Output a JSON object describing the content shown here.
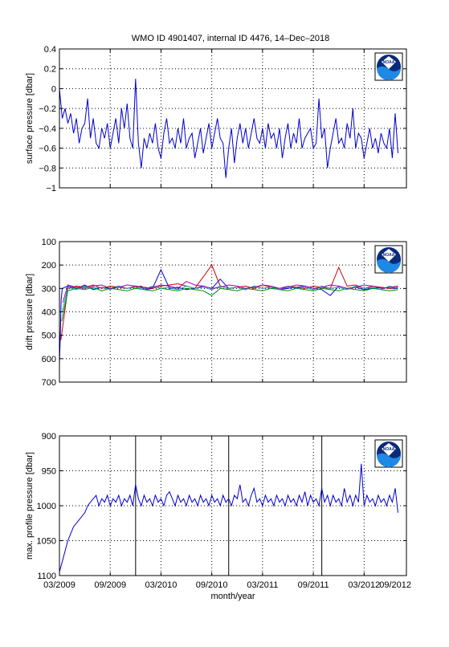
{
  "title": "WMO ID 4901407, internal ID 4476, 14–Dec–2018",
  "xlabel": "month/year",
  "logo_text": "NOAA",
  "colors": {
    "line": "#0000cc",
    "axes": "#000000",
    "grid": "#000000",
    "background": "#ffffff"
  },
  "chart_data": [
    {
      "type": "line",
      "ylabel": "surface pressure [dbar]",
      "ylim": [
        -1,
        0.4
      ],
      "yticks": [
        "0.4",
        "0.2",
        "0",
        "−0.2",
        "−0.4",
        "−0.6",
        "−0.8",
        "−1"
      ],
      "ytick_values": [
        0.4,
        0.2,
        0,
        -0.2,
        -0.4,
        -0.6,
        -0.8,
        -1
      ],
      "reversed": false,
      "grid": true,
      "series": [
        {
          "x": [
            0,
            1,
            2,
            3,
            4,
            5,
            6,
            7,
            8,
            9,
            10,
            11,
            12,
            13,
            14,
            15,
            16,
            17,
            18,
            19,
            20,
            21,
            22,
            23,
            24,
            25,
            26,
            27,
            28,
            29,
            30,
            31,
            32,
            33,
            34,
            35,
            36,
            37,
            38,
            39,
            40,
            41,
            42,
            43,
            44,
            45,
            46,
            47,
            48,
            49,
            50,
            51,
            52,
            53,
            54,
            55,
            56,
            57,
            58,
            59,
            60,
            61,
            62,
            63,
            64,
            65,
            66,
            67,
            68,
            69,
            70,
            71,
            72,
            73,
            74,
            75,
            76,
            77,
            78,
            79,
            80,
            81,
            82,
            83,
            84,
            85,
            86,
            87,
            88,
            89,
            90,
            91,
            92,
            93,
            94,
            95,
            96,
            97,
            98,
            99,
            100,
            101,
            102,
            103,
            104,
            105,
            106,
            107,
            108,
            109,
            110,
            111,
            112,
            113,
            114,
            115,
            116,
            117,
            118,
            119,
            120
          ],
          "values": [
            0.0,
            -0.3,
            -0.2,
            -0.35,
            -0.25,
            -0.45,
            -0.3,
            -0.55,
            -0.4,
            -0.35,
            -0.1,
            -0.5,
            -0.3,
            -0.55,
            -0.6,
            -0.4,
            -0.5,
            -0.35,
            -0.6,
            -0.45,
            -0.3,
            -0.55,
            -0.2,
            -0.4,
            -0.15,
            -0.5,
            -0.6,
            0.1,
            -0.55,
            -0.8,
            -0.5,
            -0.6,
            -0.45,
            -0.55,
            -0.35,
            -0.6,
            -0.7,
            -0.45,
            -0.3,
            -0.55,
            -0.5,
            -0.6,
            -0.4,
            -0.55,
            -0.3,
            -0.6,
            -0.5,
            -0.45,
            -0.7,
            -0.55,
            -0.4,
            -0.65,
            -0.5,
            -0.35,
            -0.6,
            -0.45,
            -0.3,
            -0.5,
            -0.55,
            -0.9,
            -0.6,
            -0.4,
            -0.75,
            -0.5,
            -0.35,
            -0.55,
            -0.4,
            -0.6,
            -0.45,
            -0.3,
            -0.5,
            -0.55,
            -0.4,
            -0.6,
            -0.35,
            -0.5,
            -0.45,
            -0.6,
            -0.4,
            -0.7,
            -0.5,
            -0.35,
            -0.6,
            -0.45,
            -0.55,
            -0.3,
            -0.6,
            -0.5,
            -0.45,
            -0.4,
            -0.6,
            -0.55,
            -0.1,
            -0.5,
            -0.4,
            -0.8,
            -0.6,
            -0.45,
            -0.3,
            -0.55,
            -0.5,
            -0.6,
            -0.35,
            -0.5,
            -0.2,
            -0.6,
            -0.45,
            -0.5,
            -0.7,
            -0.55,
            -0.4,
            -0.6,
            -0.5,
            -0.65,
            -0.45,
            -0.55,
            -0.6,
            -0.4,
            -0.7,
            -0.25,
            -0.65
          ]
        }
      ]
    },
    {
      "type": "line",
      "ylabel": "drift pressure [dbar]",
      "ylim": [
        100,
        700
      ],
      "yticks": [
        "100",
        "200",
        "300",
        "400",
        "500",
        "600",
        "700"
      ],
      "ytick_values": [
        100,
        200,
        300,
        400,
        500,
        600,
        700
      ],
      "reversed": true,
      "grid": true,
      "series": [
        {
          "color": "#0000cc",
          "x": [
            0,
            0.3,
            0.6,
            1,
            3,
            6,
            9,
            12,
            15,
            18,
            21,
            24,
            27,
            29,
            30,
            33,
            36,
            39,
            42,
            45,
            48,
            51,
            54,
            57,
            60,
            63,
            66,
            69,
            72,
            75,
            78,
            81,
            84,
            87,
            90,
            93,
            96,
            99,
            102,
            105,
            108,
            111,
            114,
            117,
            120
          ],
          "values": [
            620,
            500,
            350,
            300,
            290,
            300,
            285,
            305,
            295,
            300,
            290,
            300,
            295,
            290,
            305,
            300,
            220,
            300,
            295,
            305,
            300,
            290,
            300,
            260,
            300,
            295,
            305,
            290,
            300,
            295,
            305,
            300,
            295,
            290,
            300,
            305,
            330,
            290,
            300,
            295,
            305,
            300,
            295,
            300,
            300
          ]
        },
        {
          "color": "#cc0000",
          "x": [
            0.5,
            3,
            6,
            9,
            12,
            15,
            18,
            21,
            24,
            27,
            30,
            33,
            36,
            39,
            42,
            45,
            48,
            51,
            54,
            57,
            60,
            63,
            66,
            69,
            72,
            75,
            78,
            81,
            84,
            87,
            90,
            93,
            96,
            99,
            102,
            105,
            108,
            111,
            114,
            117,
            120
          ],
          "values": [
            520,
            300,
            290,
            295,
            285,
            300,
            290,
            295,
            300,
            290,
            295,
            300,
            290,
            285,
            280,
            290,
            300,
            250,
            200,
            290,
            300,
            295,
            290,
            300,
            285,
            295,
            300,
            290,
            295,
            300,
            290,
            295,
            300,
            210,
            290,
            285,
            300,
            290,
            295,
            300,
            295
          ]
        },
        {
          "color": "#008800",
          "x": [
            0.8,
            3,
            6,
            9,
            12,
            15,
            18,
            21,
            24,
            27,
            30,
            33,
            36,
            39,
            42,
            45,
            48,
            51,
            54,
            57,
            60,
            63,
            66,
            69,
            72,
            75,
            78,
            81,
            84,
            87,
            90,
            93,
            96,
            99,
            102,
            105,
            108,
            111,
            114,
            117,
            120
          ],
          "values": [
            440,
            310,
            300,
            305,
            295,
            310,
            300,
            305,
            310,
            300,
            305,
            310,
            300,
            305,
            310,
            300,
            305,
            310,
            330,
            300,
            305,
            310,
            300,
            305,
            310,
            300,
            305,
            310,
            300,
            305,
            310,
            300,
            305,
            310,
            300,
            305,
            310,
            300,
            305,
            310,
            305
          ]
        },
        {
          "color": "#00aaaa",
          "x": [
            1,
            3,
            6,
            9,
            12,
            15,
            18,
            21,
            24,
            27,
            30,
            33,
            36,
            39,
            42,
            45,
            48,
            51,
            54,
            57,
            60,
            63,
            66,
            69,
            72,
            75,
            78,
            81,
            84,
            87,
            90,
            93,
            96,
            99,
            102,
            105,
            108,
            111,
            114,
            117,
            120
          ],
          "values": [
            400,
            295,
            305,
            290,
            300,
            295,
            305,
            290,
            300,
            295,
            305,
            290,
            300,
            295,
            305,
            290,
            300,
            295,
            305,
            290,
            300,
            295,
            305,
            290,
            300,
            295,
            305,
            290,
            300,
            295,
            305,
            290,
            300,
            295,
            305,
            290,
            300,
            295,
            305,
            290,
            300
          ]
        },
        {
          "color": "#aa00aa",
          "x": [
            1.2,
            3,
            6,
            9,
            12,
            15,
            18,
            21,
            24,
            27,
            30,
            33,
            36,
            39,
            42,
            45,
            48,
            51,
            54,
            57,
            60,
            63,
            66,
            69,
            72,
            75,
            78,
            81,
            84,
            87,
            90,
            93,
            96,
            99,
            102,
            105,
            108,
            111,
            114,
            117,
            120
          ],
          "values": [
            360,
            285,
            295,
            300,
            290,
            285,
            300,
            295,
            285,
            290,
            300,
            295,
            285,
            290,
            300,
            270,
            285,
            290,
            300,
            295,
            285,
            290,
            300,
            295,
            285,
            290,
            300,
            295,
            285,
            290,
            300,
            295,
            285,
            290,
            300,
            295,
            285,
            290,
            300,
            295,
            290
          ]
        }
      ]
    },
    {
      "type": "line",
      "ylabel": "max. profile pressure [dbar]",
      "ylim": [
        900,
        1100
      ],
      "yticks": [
        "900",
        "950",
        "1000",
        "1050",
        "1100"
      ],
      "ytick_values": [
        900,
        950,
        1000,
        1050,
        1100
      ],
      "reversed": true,
      "grid": true,
      "vlines": [
        27,
        60,
        93
      ],
      "series": [
        {
          "x": [
            0,
            1,
            2,
            3,
            4,
            5,
            6,
            7,
            8,
            9,
            10,
            11,
            12,
            13,
            14,
            15,
            16,
            17,
            18,
            19,
            20,
            21,
            22,
            23,
            24,
            25,
            26,
            27,
            28,
            29,
            30,
            31,
            32,
            33,
            34,
            35,
            36,
            37,
            38,
            39,
            40,
            41,
            42,
            43,
            44,
            45,
            46,
            47,
            48,
            49,
            50,
            51,
            52,
            53,
            54,
            55,
            56,
            57,
            58,
            59,
            60,
            61,
            62,
            63,
            64,
            65,
            66,
            67,
            68,
            69,
            70,
            71,
            72,
            73,
            74,
            75,
            76,
            77,
            78,
            79,
            80,
            81,
            82,
            83,
            84,
            85,
            86,
            87,
            88,
            89,
            90,
            91,
            92,
            93,
            94,
            95,
            96,
            97,
            98,
            99,
            100,
            101,
            102,
            103,
            104,
            105,
            106,
            107,
            108,
            109,
            110,
            111,
            112,
            113,
            114,
            115,
            116,
            117,
            118,
            119,
            120
          ],
          "values": [
            1095,
            1080,
            1065,
            1050,
            1040,
            1030,
            1025,
            1020,
            1015,
            1010,
            1000,
            995,
            990,
            985,
            1000,
            990,
            995,
            985,
            1000,
            990,
            995,
            985,
            1000,
            990,
            995,
            985,
            1000,
            970,
            990,
            1000,
            985,
            995,
            990,
            1000,
            985,
            995,
            990,
            1000,
            985,
            980,
            990,
            1000,
            985,
            995,
            990,
            1000,
            985,
            995,
            990,
            1000,
            985,
            995,
            990,
            1000,
            985,
            995,
            990,
            1000,
            985,
            995,
            990,
            1000,
            985,
            990,
            970,
            995,
            990,
            1000,
            985,
            975,
            995,
            990,
            1000,
            985,
            995,
            990,
            1000,
            985,
            995,
            990,
            1000,
            985,
            995,
            990,
            1000,
            985,
            995,
            980,
            1000,
            985,
            995,
            990,
            1000,
            975,
            995,
            985,
            1000,
            985,
            995,
            990,
            1000,
            975,
            995,
            985,
            1000,
            985,
            995,
            940,
            1000,
            985,
            995,
            990,
            1000,
            985,
            995,
            990,
            1000,
            985,
            995,
            975,
            1010
          ]
        }
      ]
    }
  ],
  "xticks": [
    "03/2009",
    "09/2009",
    "03/2010",
    "09/2010",
    "03/2011",
    "09/2011",
    "03/2012",
    "09/2012"
  ],
  "xtick_values": [
    0,
    18,
    36,
    54,
    72,
    90,
    108,
    126
  ]
}
